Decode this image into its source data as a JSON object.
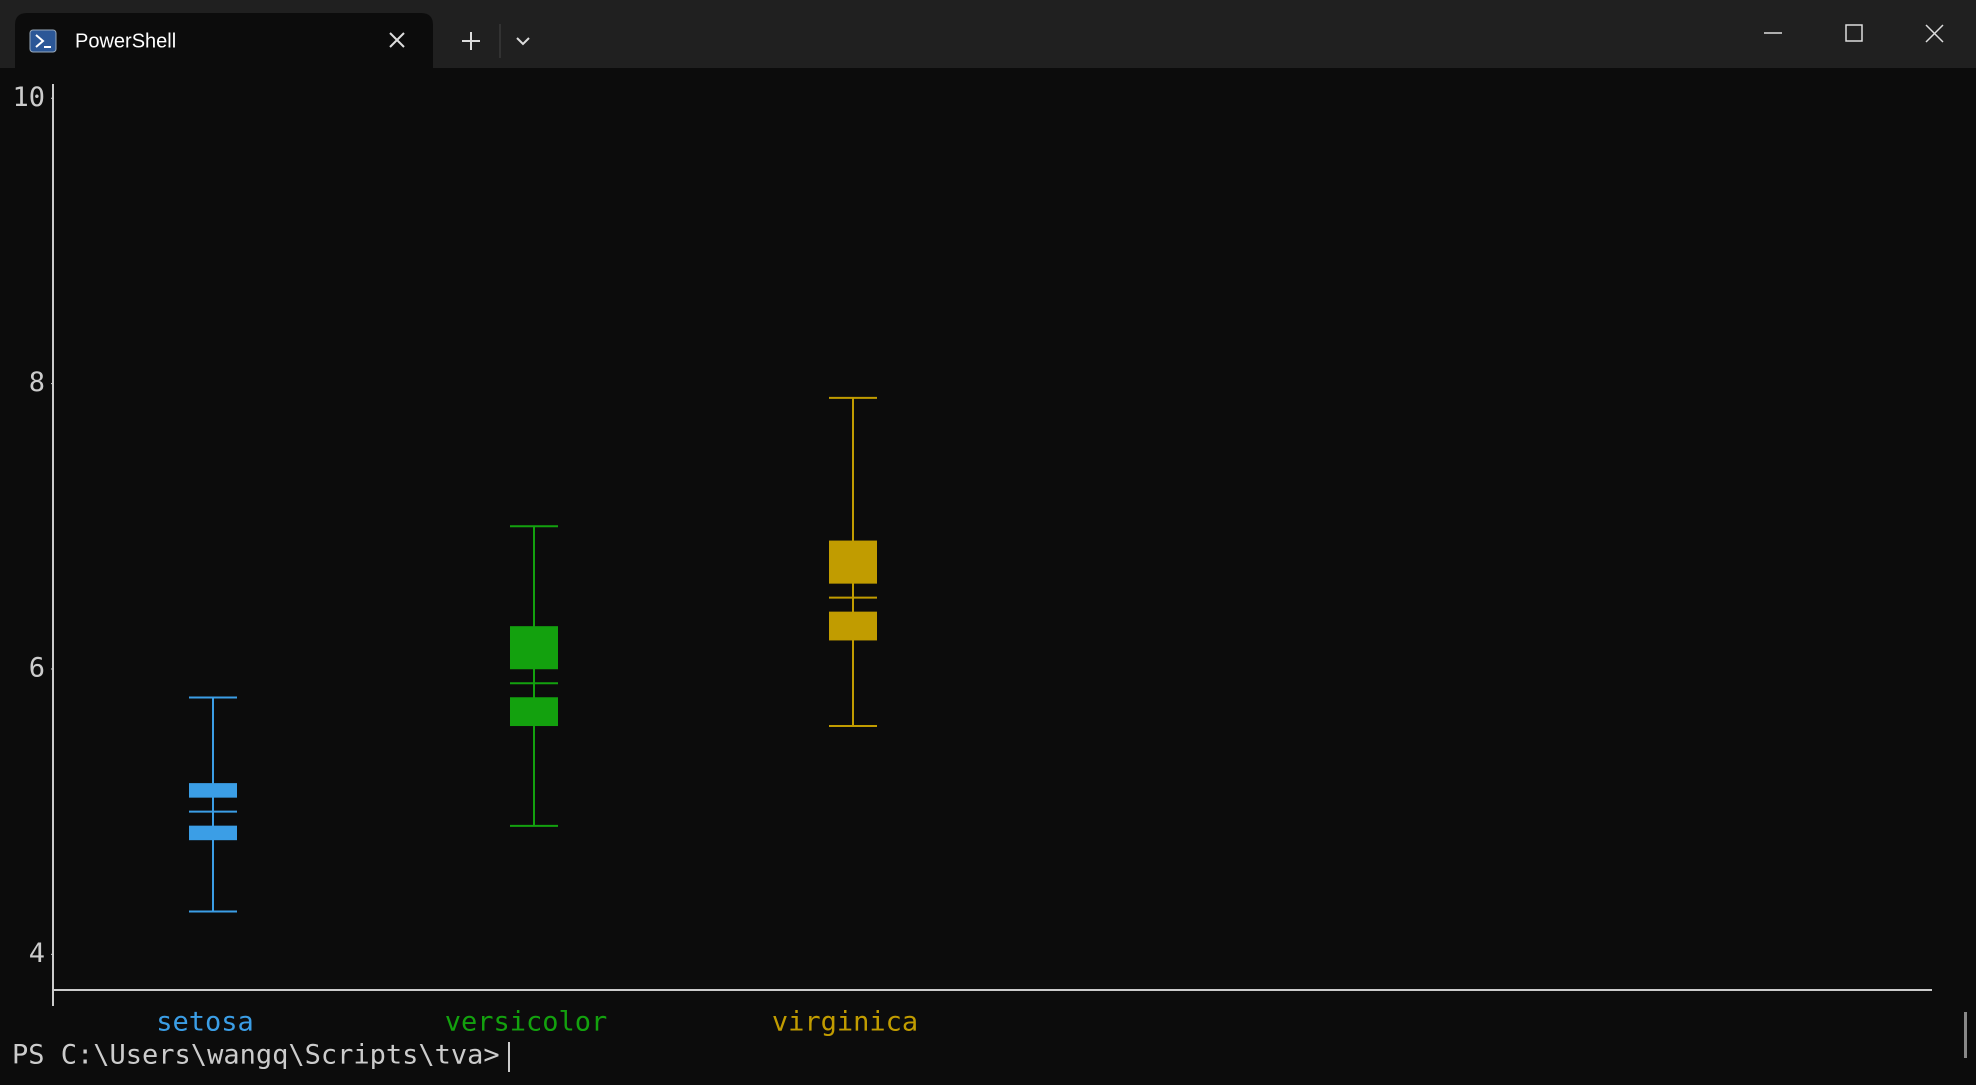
{
  "window": {
    "tab_title": "PowerShell"
  },
  "terminal": {
    "prompt": "PS C:\\Users\\wangq\\Scripts\\tva>"
  },
  "chart_data": {
    "type": "box",
    "series": [
      {
        "name": "setosa",
        "color": "#3b9ee6",
        "min": 4.3,
        "q1": 4.8,
        "median": 5.0,
        "q3": 5.2,
        "max": 5.8
      },
      {
        "name": "versicolor",
        "color": "#13a10e",
        "min": 4.9,
        "q1": 5.6,
        "median": 5.9,
        "q3": 6.3,
        "max": 7.0
      },
      {
        "name": "virginica",
        "color": "#c19c00",
        "min": 5.6,
        "q1": 6.2,
        "median": 6.5,
        "q3": 6.9,
        "max": 7.9
      }
    ],
    "ylim": [
      3.75,
      10.1
    ],
    "yticks": [
      4,
      6,
      8,
      10
    ]
  }
}
